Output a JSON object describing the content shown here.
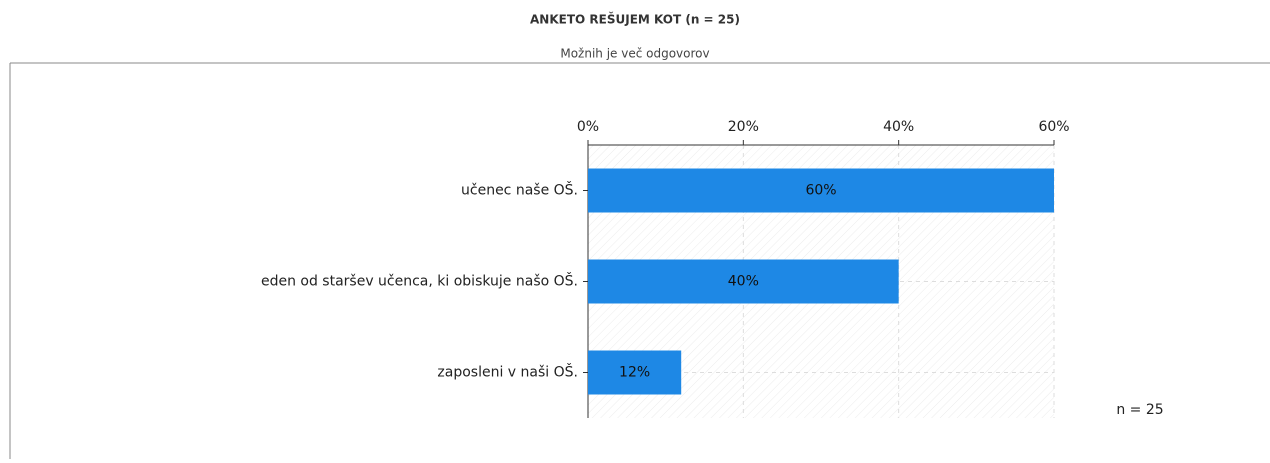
{
  "chart_data": {
    "type": "bar",
    "orientation": "horizontal",
    "title": "ANKETO REŠUJEM KOT (n = 25)",
    "subtitle": "Možnih je več odgovorov",
    "categories": [
      "učenec naše OŠ.",
      "eden od staršev učenca, ki obiskuje našo OŠ.",
      "zaposleni v naši OŠ."
    ],
    "values": [
      60,
      40,
      12
    ],
    "value_labels": [
      "60%",
      "40%",
      "12%"
    ],
    "color": "#1e88e5",
    "xlim": [
      0,
      60
    ],
    "xticks": [
      {
        "value": 0,
        "label": "0%"
      },
      {
        "value": 20,
        "label": "20%"
      },
      {
        "value": 40,
        "label": "40%"
      },
      {
        "value": 60,
        "label": "60%"
      }
    ],
    "grid": true,
    "annotation": "n = 25"
  }
}
